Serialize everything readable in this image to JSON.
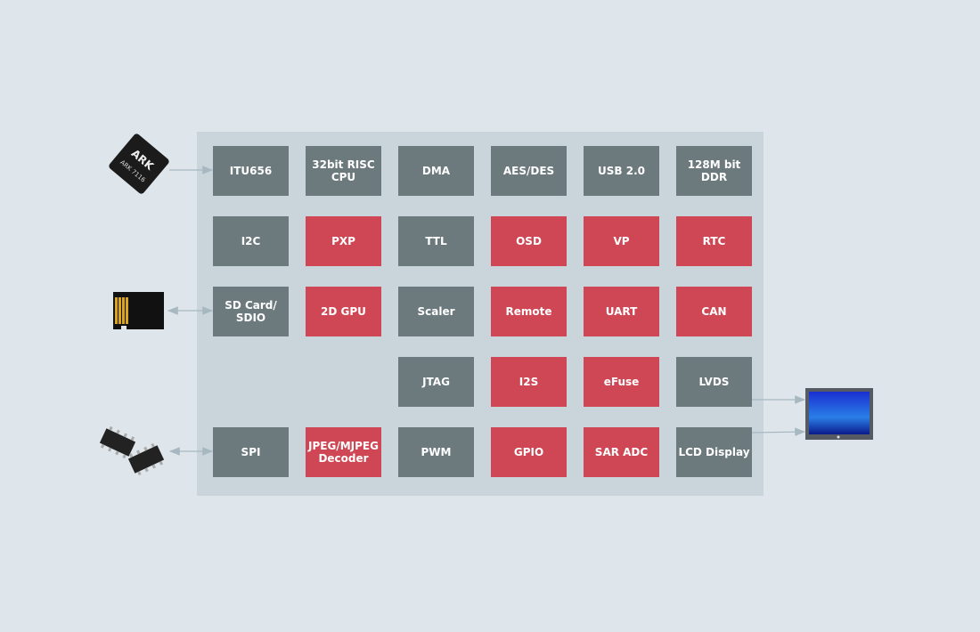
{
  "colors": {
    "background": "#dfe6eb",
    "panel": "#c9d5db",
    "standard": "#6c7a7e",
    "highlight": "#cf4754",
    "arrow": "#a7b8c1"
  },
  "chip_label": "ARK 7116",
  "chip_logo": "ARK",
  "rows": [
    [
      {
        "label": "ITU656",
        "kind": "gray"
      },
      {
        "label": "32bit RISC\nCPU",
        "kind": "gray"
      },
      {
        "label": "DMA",
        "kind": "gray"
      },
      {
        "label": "AES/DES",
        "kind": "gray"
      },
      {
        "label": "USB 2.0",
        "kind": "gray"
      },
      {
        "label": "128M bit\nDDR",
        "kind": "gray"
      }
    ],
    [
      {
        "label": "I2C",
        "kind": "gray"
      },
      {
        "label": "PXP",
        "kind": "red"
      },
      {
        "label": "TTL",
        "kind": "gray"
      },
      {
        "label": "OSD",
        "kind": "red"
      },
      {
        "label": "VP",
        "kind": "red"
      },
      {
        "label": "RTC",
        "kind": "red"
      }
    ],
    [
      {
        "label": "SD Card/\nSDIO",
        "kind": "gray"
      },
      {
        "label": "2D GPU",
        "kind": "red"
      },
      {
        "label": "Scaler",
        "kind": "gray"
      },
      {
        "label": "Remote",
        "kind": "red"
      },
      {
        "label": "UART",
        "kind": "red"
      },
      {
        "label": "CAN",
        "kind": "red"
      }
    ],
    [
      null,
      null,
      {
        "label": "JTAG",
        "kind": "gray"
      },
      {
        "label": "I2S",
        "kind": "red"
      },
      {
        "label": "eFuse",
        "kind": "red"
      },
      {
        "label": "LVDS",
        "kind": "gray"
      }
    ],
    [
      {
        "label": "SPI",
        "kind": "gray"
      },
      {
        "label": "JPEG/MJPEG\nDecoder",
        "kind": "red"
      },
      {
        "label": "PWM",
        "kind": "gray"
      },
      {
        "label": "GPIO",
        "kind": "red"
      },
      {
        "label": "SAR ADC",
        "kind": "red"
      },
      {
        "label": "LCD Display",
        "kind": "gray"
      }
    ]
  ]
}
